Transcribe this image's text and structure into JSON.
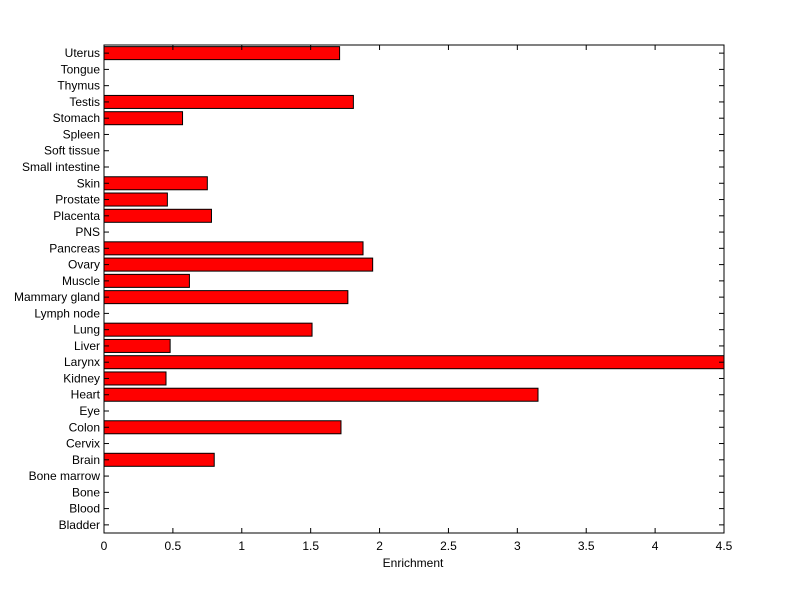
{
  "chart_data": {
    "type": "bar",
    "orientation": "horizontal",
    "title": "",
    "xlabel": "Enrichment",
    "ylabel": "",
    "xlim": [
      0,
      4.5
    ],
    "xticks": [
      "0",
      "0.5",
      "1",
      "1.5",
      "2",
      "2.5",
      "3",
      "3.5",
      "4",
      "4.5"
    ],
    "grid": false,
    "bar_color": "#ff0000",
    "categories": [
      "Bladder",
      "Blood",
      "Bone",
      "Bone marrow",
      "Brain",
      "Cervix",
      "Colon",
      "Eye",
      "Heart",
      "Kidney",
      "Larynx",
      "Liver",
      "Lung",
      "Lymph node",
      "Mammary gland",
      "Muscle",
      "Ovary",
      "Pancreas",
      "PNS",
      "Placenta",
      "Prostate",
      "Skin",
      "Small intestine",
      "Soft tissue",
      "Spleen",
      "Stomach",
      "Testis",
      "Thymus",
      "Tongue",
      "Uterus"
    ],
    "values": [
      0,
      0,
      0,
      0,
      0.8,
      0,
      1.72,
      0,
      3.15,
      0.45,
      4.5,
      0.48,
      1.51,
      0,
      1.77,
      0.62,
      1.95,
      1.88,
      0,
      0.78,
      0.46,
      0.75,
      0,
      0,
      0,
      0.57,
      1.81,
      0,
      0,
      1.71
    ]
  }
}
